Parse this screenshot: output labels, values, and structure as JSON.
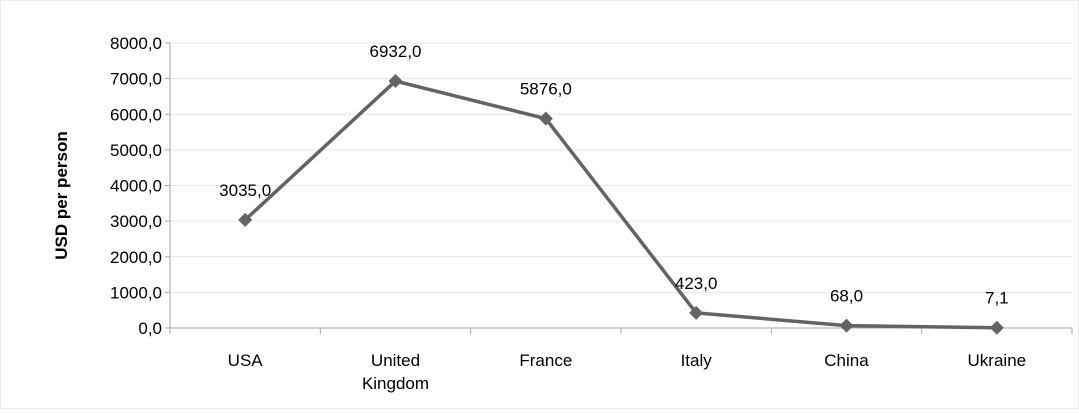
{
  "chart_data": {
    "type": "line",
    "title": "",
    "xlabel": "",
    "ylabel": "USD per person",
    "categories": [
      [
        "USA"
      ],
      [
        "United",
        "Kingdom"
      ],
      [
        "France"
      ],
      [
        "Italy"
      ],
      [
        "China"
      ],
      [
        "Ukraine"
      ]
    ],
    "series": [
      {
        "values": [
          3035.0,
          6932.0,
          5876.0,
          423.0,
          68.0,
          7.1
        ],
        "data_labels": [
          "3035,0",
          "6932,0",
          "5876,0",
          "423,0",
          "68,0",
          "7,1"
        ],
        "color": "#636363",
        "marker": "diamond"
      }
    ],
    "ylim": [
      0,
      8000
    ],
    "yticks": [
      0,
      1000,
      2000,
      3000,
      4000,
      5000,
      6000,
      7000,
      8000
    ],
    "ytick_labels": [
      "0,0",
      "1000,0",
      "2000,0",
      "3000,0",
      "4000,0",
      "5000,0",
      "6000,0",
      "7000,0",
      "8000,0"
    ],
    "grid": true,
    "gridline_color": "#e6e6e6",
    "axis_color": "#a6a6a6",
    "legend": "none"
  }
}
